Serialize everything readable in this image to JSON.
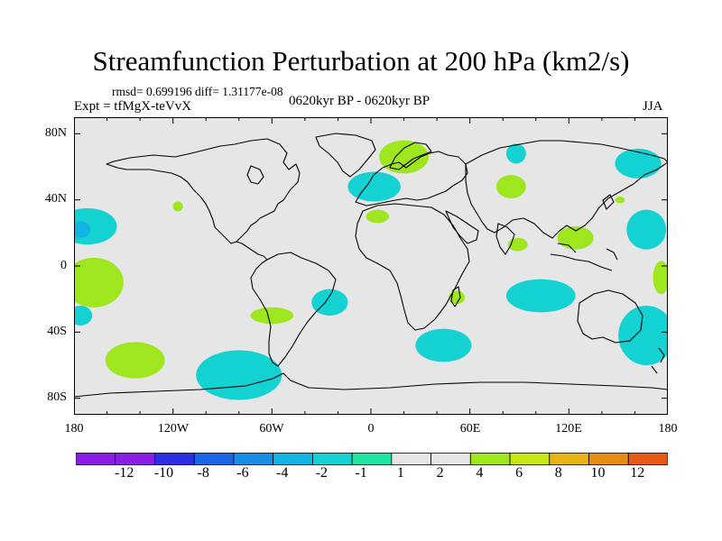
{
  "header": {
    "title": "Streamfunction Perturbation at 200 hPa (km2/s)",
    "stats": "rmsd= 0.699196 diff= 1.31177e-08",
    "experiment": "Expt = tfMgX-teVvX",
    "period": "0620kyr BP - 0620kyr BP",
    "season": "JJA"
  },
  "axes": {
    "y_ticks": [
      "80N",
      "40N",
      "0",
      "40S",
      "80S"
    ],
    "x_ticks": [
      "180",
      "120W",
      "60W",
      "0",
      "60E",
      "120E",
      "180"
    ]
  },
  "colorbar": {
    "labels": [
      "-12",
      "-10",
      "-8",
      "-6",
      "-4",
      "-2",
      "-1",
      "1",
      "2",
      "4",
      "6",
      "8",
      "10",
      "12"
    ],
    "colors": [
      "#8a1ee6",
      "#2e2ee6",
      "#1a66e6",
      "#1a8ee6",
      "#12b4e6",
      "#14d2d2",
      "#1ee6a0",
      "#e6e6e6",
      "#9ee61e",
      "#c8e614",
      "#e6b414",
      "#e68c14",
      "#e65a14",
      "#e62814"
    ]
  },
  "chart_data": {
    "type": "heatmap",
    "title": "Streamfunction Perturbation at 200 hPa (km2/s)",
    "xlabel": "",
    "ylabel": "",
    "xlim": [
      -180,
      180
    ],
    "ylim": [
      -90,
      90
    ],
    "levels": [
      -12,
      -10,
      -8,
      -6,
      -4,
      -2,
      -1,
      1,
      2,
      4,
      6,
      8,
      10,
      12
    ],
    "regions": [
      {
        "sign": "negative",
        "bin": "-2 to -1",
        "lon": -172,
        "lat": 24,
        "dlon": 18,
        "dlat": 11
      },
      {
        "sign": "negative",
        "bin": "-4 to -2",
        "lon": -176,
        "lat": 22,
        "dlon": 6,
        "dlat": 5
      },
      {
        "sign": "negative",
        "bin": "-2 to -1",
        "lon": -176,
        "lat": -30,
        "dlon": 7,
        "dlat": 6
      },
      {
        "sign": "negative",
        "bin": "-2 to -1",
        "lon": -80,
        "lat": -66,
        "dlon": 26,
        "dlat": 15
      },
      {
        "sign": "negative",
        "bin": "-2 to -1",
        "lon": -25,
        "lat": -22,
        "dlon": 11,
        "dlat": 8
      },
      {
        "sign": "negative",
        "bin": "-2 to -1",
        "lon": 2,
        "lat": 48,
        "dlon": 16,
        "dlat": 9
      },
      {
        "sign": "negative",
        "bin": "-2 to -1",
        "lon": 44,
        "lat": -48,
        "dlon": 17,
        "dlat": 10
      },
      {
        "sign": "negative",
        "bin": "-2 to -1",
        "lon": 88,
        "lat": 68,
        "dlon": 6,
        "dlat": 6
      },
      {
        "sign": "negative",
        "bin": "-2 to -1",
        "lon": 103,
        "lat": -18,
        "dlon": 21,
        "dlat": 10
      },
      {
        "sign": "negative",
        "bin": "-2 to -1",
        "lon": 162,
        "lat": 62,
        "dlon": 14,
        "dlat": 9
      },
      {
        "sign": "negative",
        "bin": "-2 to -1",
        "lon": 167,
        "lat": 22,
        "dlon": 12,
        "dlat": 12
      },
      {
        "sign": "negative",
        "bin": "-2 to -1",
        "lon": 167,
        "lat": -42,
        "dlon": 17,
        "dlat": 18
      },
      {
        "sign": "positive",
        "bin": "1 to 2",
        "lon": -168,
        "lat": -10,
        "dlon": 18,
        "dlat": 15
      },
      {
        "sign": "positive",
        "bin": "1 to 2",
        "lon": -143,
        "lat": -57,
        "dlon": 18,
        "dlat": 11
      },
      {
        "sign": "positive",
        "bin": "1 to 2",
        "lon": -117,
        "lat": 36,
        "dlon": 3,
        "dlat": 3
      },
      {
        "sign": "positive",
        "bin": "1 to 2",
        "lon": -60,
        "lat": -30,
        "dlon": 13,
        "dlat": 5
      },
      {
        "sign": "positive",
        "bin": "1 to 2",
        "lon": 20,
        "lat": 66,
        "dlon": 15,
        "dlat": 10
      },
      {
        "sign": "positive",
        "bin": "1 to 2",
        "lon": 4,
        "lat": 30,
        "dlon": 7,
        "dlat": 4
      },
      {
        "sign": "positive",
        "bin": "1 to 2",
        "lon": 52,
        "lat": -19,
        "dlon": 5,
        "dlat": 4
      },
      {
        "sign": "positive",
        "bin": "1 to 2",
        "lon": 85,
        "lat": 48,
        "dlon": 9,
        "dlat": 7
      },
      {
        "sign": "positive",
        "bin": "1 to 2",
        "lon": 89,
        "lat": 13,
        "dlon": 6,
        "dlat": 4
      },
      {
        "sign": "positive",
        "bin": "1 to 2",
        "lon": 124,
        "lat": 17,
        "dlon": 11,
        "dlat": 7
      },
      {
        "sign": "positive",
        "bin": "1 to 2",
        "lon": 151,
        "lat": 40,
        "dlon": 3,
        "dlat": 2
      },
      {
        "sign": "positive",
        "bin": "1 to 2",
        "lon": 176,
        "lat": -7,
        "dlon": 5,
        "dlat": 10
      }
    ]
  }
}
